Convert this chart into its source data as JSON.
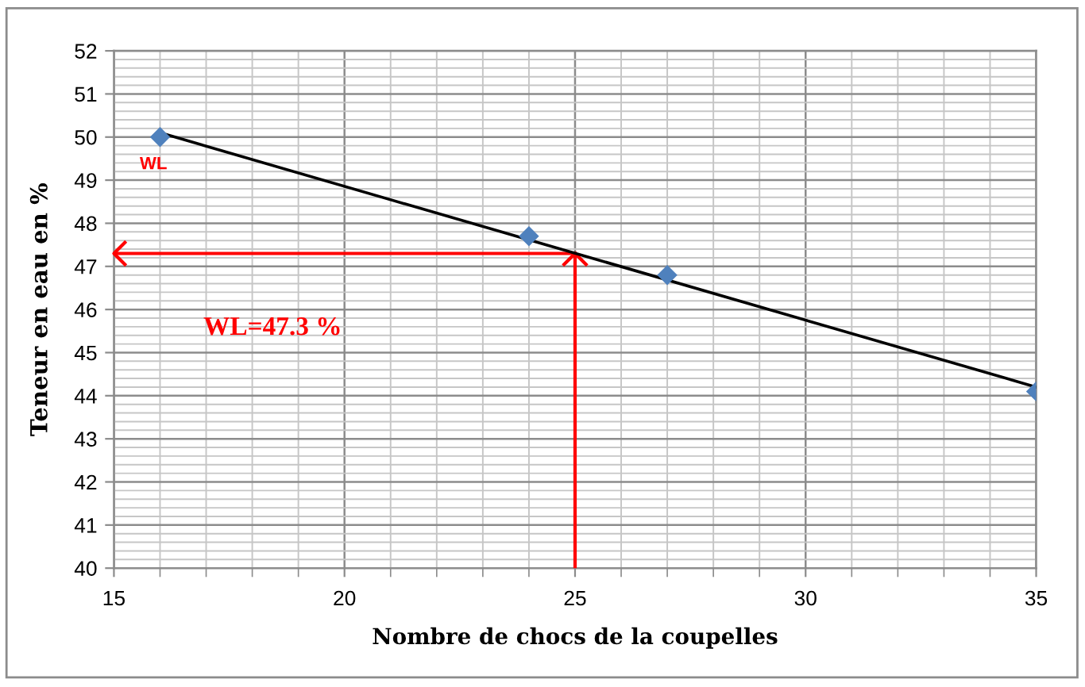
{
  "chart_data": {
    "type": "scatter",
    "xlabel": "Nombre de chocs de la coupelles",
    "ylabel": "Teneur en eau en %",
    "xlim": [
      15,
      35
    ],
    "xticks": [
      15,
      {
        "value": 16,
        "label": null
      },
      {
        "value": 17,
        "label": null
      },
      {
        "value": 18,
        "label": null
      },
      {
        "value": 19,
        "label": null
      },
      20,
      {
        "value": 21,
        "label": null
      },
      {
        "value": 22,
        "label": null
      },
      {
        "value": 23,
        "label": null
      },
      {
        "value": 24,
        "label": null
      },
      25,
      {
        "value": 26,
        "label": null
      },
      {
        "value": 27,
        "label": null
      },
      {
        "value": 28,
        "label": null
      },
      {
        "value": 29,
        "label": null
      },
      30,
      {
        "value": 31,
        "label": null
      },
      {
        "value": 32,
        "label": null
      },
      {
        "value": 33,
        "label": null
      },
      {
        "value": 34,
        "label": null
      },
      35
    ],
    "ylim": [
      40,
      52
    ],
    "yticks": [
      40,
      {
        "value": 40.2,
        "label": null
      },
      {
        "value": 40.4,
        "label": null
      },
      {
        "value": 40.6,
        "label": null
      },
      {
        "value": 40.8,
        "label": null
      },
      41,
      {
        "value": 41.2,
        "label": null
      },
      {
        "value": 41.4,
        "label": null
      },
      {
        "value": 41.6,
        "label": null
      },
      {
        "value": 41.8,
        "label": null
      },
      42,
      {
        "value": 42.2,
        "label": null
      },
      {
        "value": 42.4,
        "label": null
      },
      {
        "value": 42.6,
        "label": null
      },
      {
        "value": 42.8,
        "label": null
      },
      43,
      {
        "value": 43.2,
        "label": null
      },
      {
        "value": 43.4,
        "label": null
      },
      {
        "value": 43.6,
        "label": null
      },
      {
        "value": 43.8,
        "label": null
      },
      44,
      {
        "value": 44.2,
        "label": null
      },
      {
        "value": 44.4,
        "label": null
      },
      {
        "value": 44.6,
        "label": null
      },
      {
        "value": 44.8,
        "label": null
      },
      45,
      {
        "value": 45.2,
        "label": null
      },
      {
        "value": 45.4,
        "label": null
      },
      {
        "value": 45.6,
        "label": null
      },
      {
        "value": 45.8,
        "label": null
      },
      46,
      {
        "value": 46.2,
        "label": null
      },
      {
        "value": 46.4,
        "label": null
      },
      {
        "value": 46.6,
        "label": null
      },
      {
        "value": 46.8,
        "label": null
      },
      47,
      {
        "value": 47.2,
        "label": null
      },
      {
        "value": 47.4,
        "label": null
      },
      {
        "value": 47.6,
        "label": null
      },
      {
        "value": 47.8,
        "label": null
      },
      48,
      {
        "value": 48.2,
        "label": null
      },
      {
        "value": 48.4,
        "label": null
      },
      {
        "value": 48.6,
        "label": null
      },
      {
        "value": 48.8,
        "label": null
      },
      49,
      {
        "value": 49.2,
        "label": null
      },
      {
        "value": 49.4,
        "label": null
      },
      {
        "value": 49.6,
        "label": null
      },
      {
        "value": 49.8,
        "label": null
      },
      50,
      {
        "value": 50.2,
        "label": null
      },
      {
        "value": 50.4,
        "label": null
      },
      {
        "value": 50.6,
        "label": null
      },
      {
        "value": 50.8,
        "label": null
      },
      51,
      {
        "value": 51.2,
        "label": null
      },
      {
        "value": 51.4,
        "label": null
      },
      {
        "value": 51.6,
        "label": null
      },
      {
        "value": 51.8,
        "label": null
      },
      52
    ],
    "grid": true,
    "series": [
      {
        "color": "#4f81bd",
        "marker": "diamond",
        "x": [
          16,
          24,
          27,
          35
        ],
        "values": [
          50,
          47.7,
          46.8,
          44.1
        ]
      },
      {
        "type": "line",
        "color": "#000000",
        "marker": "none",
        "line_style": "solid",
        "x": [
          16,
          35
        ],
        "values": [
          50.1,
          44.2
        ]
      }
    ],
    "ref_lines": [
      {
        "axis": "x",
        "value": 25,
        "color": "#ff0000"
      },
      {
        "axis": "y",
        "value": 47.3,
        "label": "WL=47.3 %",
        "color": "#ff0000"
      }
    ],
    "annotations": [
      "WL"
    ]
  }
}
